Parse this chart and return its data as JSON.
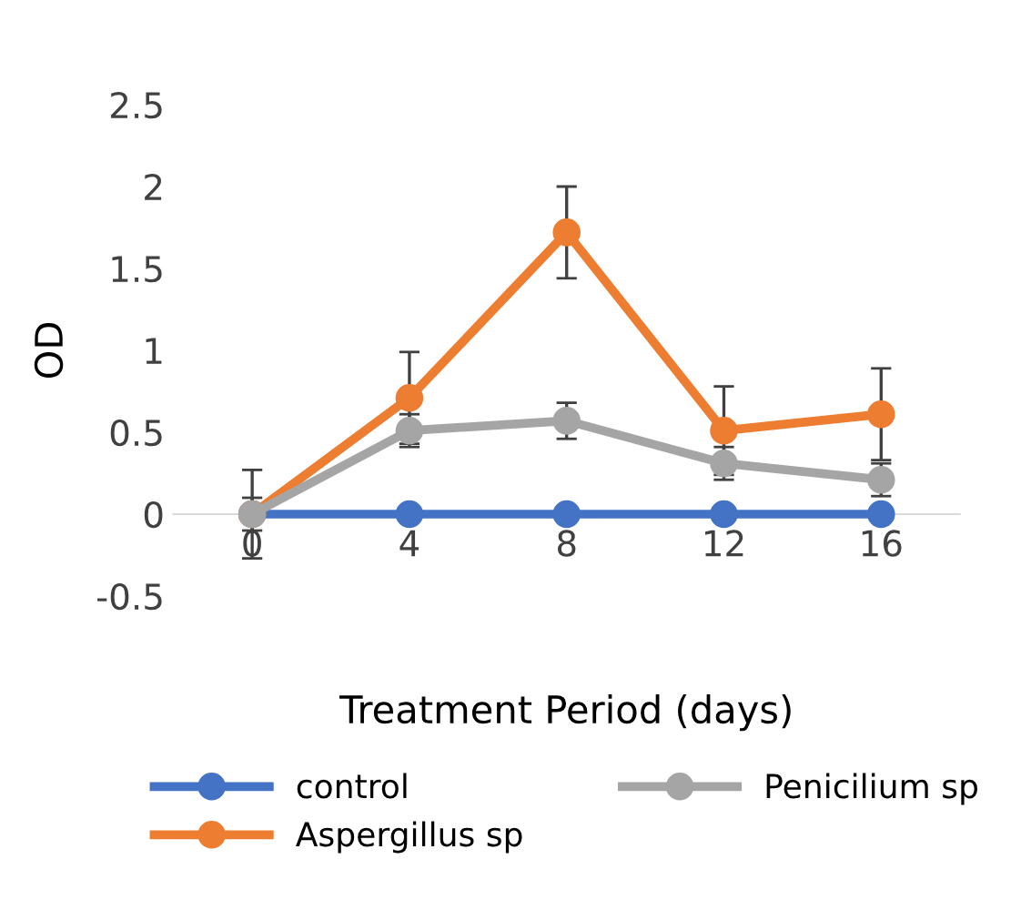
{
  "chart_data": {
    "type": "line",
    "xlabel": "Treatment Period (days)",
    "ylabel": "OD",
    "categories": [
      "0",
      "4",
      "8",
      "12",
      "16"
    ],
    "series": [
      {
        "name": "control",
        "color": "#4472c4",
        "values": [
          0,
          0,
          0,
          0,
          0
        ]
      },
      {
        "name": "Aspergillus sp",
        "color": "#ed7d31",
        "values": [
          0,
          0.71,
          1.72,
          0.51,
          0.61
        ],
        "errors": [
          0.27,
          0.28,
          0.28,
          0.27,
          0.28
        ]
      },
      {
        "name": "Penicilium sp",
        "color": "#a5a5a5",
        "values": [
          0,
          0.51,
          0.57,
          0.31,
          0.21
        ],
        "errors": [
          0.1,
          0.1,
          0.11,
          0.1,
          0.1
        ]
      }
    ],
    "ylim": [
      -0.5,
      2.5
    ],
    "yticks": [
      -0.5,
      0,
      0.5,
      1,
      1.5,
      2,
      2.5
    ],
    "grid": false,
    "legend": "bottom",
    "marker": "circle",
    "line_style": "solid"
  }
}
